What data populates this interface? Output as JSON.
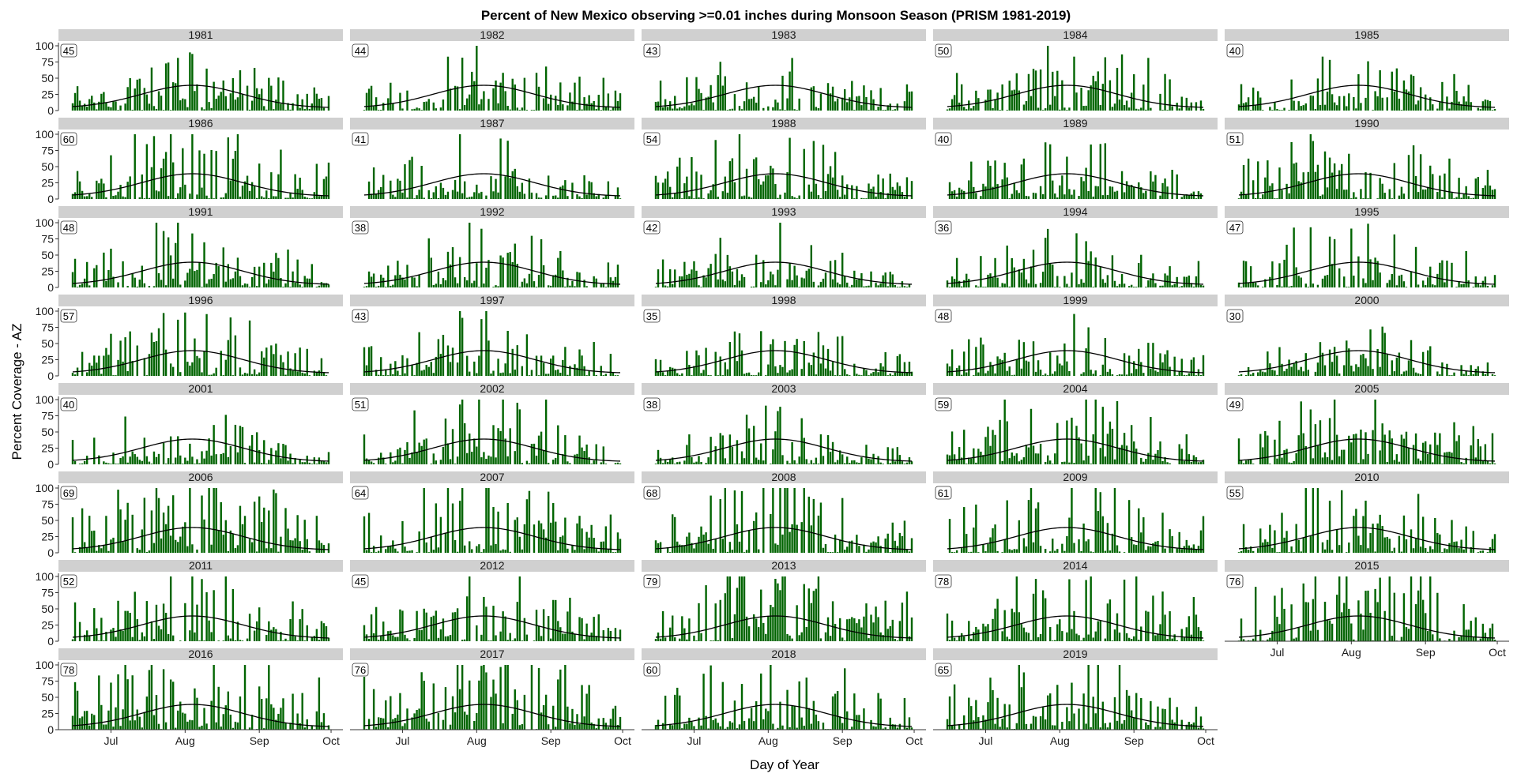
{
  "chart_data": {
    "type": "bar",
    "title": "Percent of New Mexico observing >=0.01 inches during Monsoon Season (PRISM 1981-2019)",
    "xlabel": "Day of Year",
    "ylabel": "Percent Coverage - AZ",
    "ylim": [
      0,
      100
    ],
    "yticks": [
      "0",
      "25",
      "50",
      "75",
      "100"
    ],
    "xticks": [
      "Jul",
      "Aug",
      "Sep",
      "Oct"
    ],
    "season_start": "Jun 15",
    "season_end": "Sep 30",
    "bar_color": "#006400",
    "line_color": "#000000",
    "strip_color": "#d0d0d0",
    "overlay": "smoothed mean line (peak near 40 in early August)",
    "panels": [
      {
        "year": "1981",
        "label": "45"
      },
      {
        "year": "1982",
        "label": "44"
      },
      {
        "year": "1983",
        "label": "43"
      },
      {
        "year": "1984",
        "label": "50"
      },
      {
        "year": "1985",
        "label": "40"
      },
      {
        "year": "1986",
        "label": "60"
      },
      {
        "year": "1987",
        "label": "41"
      },
      {
        "year": "1988",
        "label": "54"
      },
      {
        "year": "1989",
        "label": "40"
      },
      {
        "year": "1990",
        "label": "51"
      },
      {
        "year": "1991",
        "label": "48"
      },
      {
        "year": "1992",
        "label": "38"
      },
      {
        "year": "1993",
        "label": "42"
      },
      {
        "year": "1994",
        "label": "36"
      },
      {
        "year": "1995",
        "label": "47"
      },
      {
        "year": "1996",
        "label": "57"
      },
      {
        "year": "1997",
        "label": "43"
      },
      {
        "year": "1998",
        "label": "35"
      },
      {
        "year": "1999",
        "label": "48"
      },
      {
        "year": "2000",
        "label": "30"
      },
      {
        "year": "2001",
        "label": "40"
      },
      {
        "year": "2002",
        "label": "51"
      },
      {
        "year": "2003",
        "label": "38"
      },
      {
        "year": "2004",
        "label": "59"
      },
      {
        "year": "2005",
        "label": "49"
      },
      {
        "year": "2006",
        "label": "69"
      },
      {
        "year": "2007",
        "label": "64"
      },
      {
        "year": "2008",
        "label": "68"
      },
      {
        "year": "2009",
        "label": "61"
      },
      {
        "year": "2010",
        "label": "55"
      },
      {
        "year": "2011",
        "label": "52"
      },
      {
        "year": "2012",
        "label": "45"
      },
      {
        "year": "2013",
        "label": "79"
      },
      {
        "year": "2014",
        "label": "78"
      },
      {
        "year": "2015",
        "label": "76"
      },
      {
        "year": "2016",
        "label": "78"
      },
      {
        "year": "2017",
        "label": "76"
      },
      {
        "year": "2018",
        "label": "60"
      },
      {
        "year": "2019",
        "label": "65"
      }
    ]
  }
}
